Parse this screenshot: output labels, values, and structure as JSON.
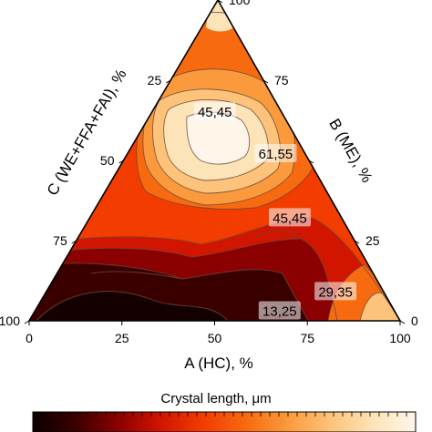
{
  "chart_data": {
    "type": "heatmap",
    "subtype": "ternary-contour",
    "axes": {
      "a": {
        "label": "A (HC), %",
        "ticks": [
          0,
          25,
          50,
          75,
          100
        ]
      },
      "b": {
        "label": "B (ME), %",
        "ticks": [
          0,
          25,
          50,
          75,
          100
        ],
        "tick_labels": [
          "0",
          "25",
          "",
          "75",
          "100"
        ]
      },
      "c": {
        "label": "C (WE+FFA+FAI), %",
        "ticks": [
          25,
          50,
          75,
          100
        ]
      }
    },
    "contour_labels": [
      {
        "text": "61,55",
        "value": 61.55,
        "a": 40,
        "b": 52,
        "c": 8
      },
      {
        "text": "45,45",
        "value": 45.45,
        "a": 17,
        "b": 65,
        "c": 18
      },
      {
        "text": "45,45",
        "value": 45.45,
        "a": 54,
        "b": 32,
        "c": 14
      },
      {
        "text": "29,35",
        "value": 29.35,
        "a": 78,
        "b": 9,
        "c": 13
      },
      {
        "text": "13,25",
        "value": 13.25,
        "a": 66,
        "b": 3,
        "c": 31
      }
    ],
    "colorbar": {
      "title": "Crystal length,  μm",
      "stops": [
        "#0d0000",
        "#3a0000",
        "#8b0000",
        "#d11500",
        "#f23c00",
        "#f76a10",
        "#fb9a3c",
        "#fdc37a",
        "#fde3b8",
        "#fff6ea"
      ]
    },
    "grid": false
  }
}
